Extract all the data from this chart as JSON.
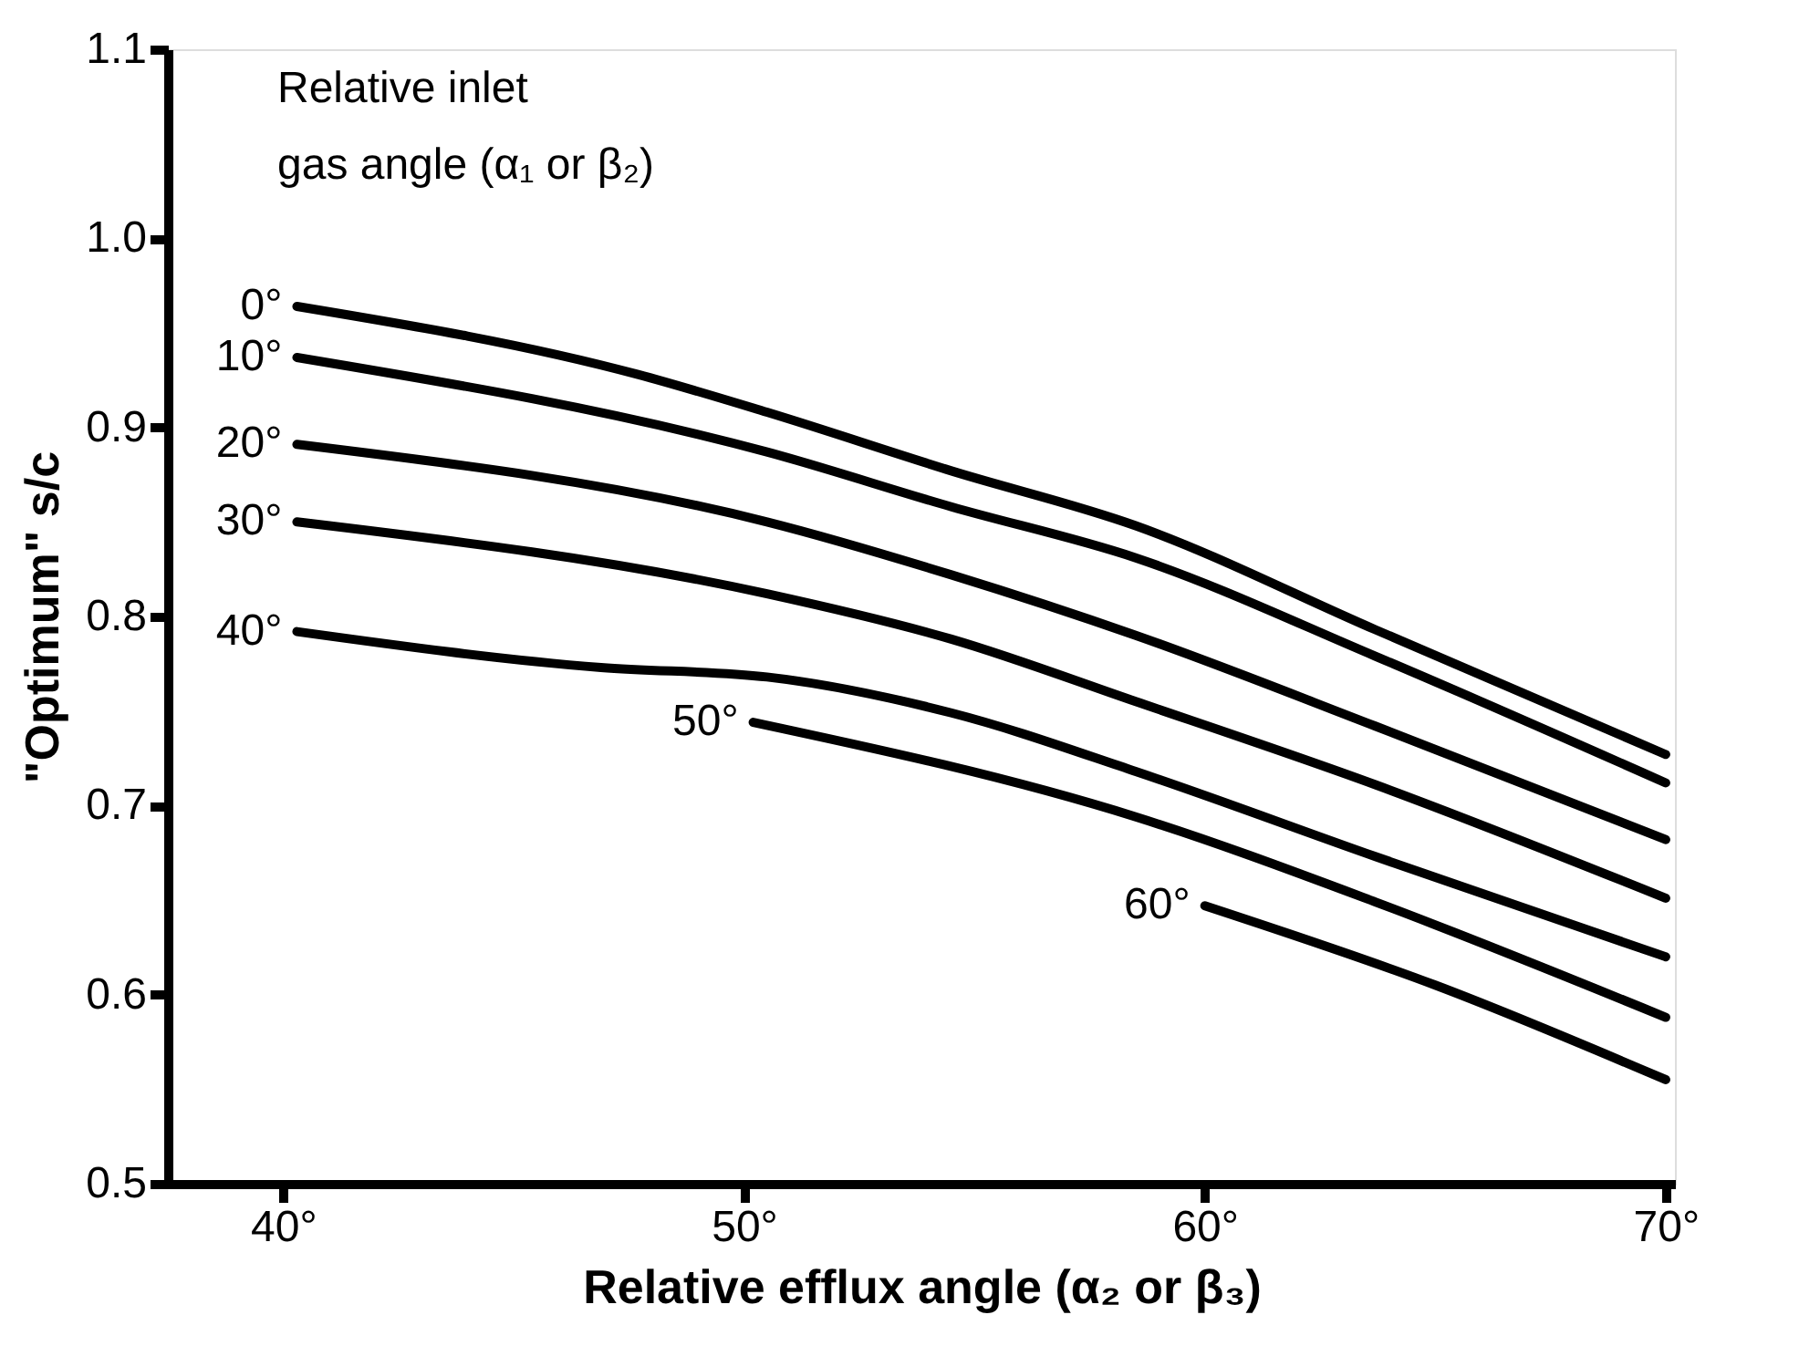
{
  "chart_data": {
    "type": "line",
    "xlabel": "Relative efflux angle (α₂ or β₃)",
    "ylabel": "\"Optimum\" s/c",
    "legend_title": "Relative inlet\ngas angle (α₁ or β₂)",
    "xlim": [
      37.5,
      70.2
    ],
    "ylim": [
      0.5,
      1.1
    ],
    "xticks": [
      {
        "value": 40,
        "label": "40°"
      },
      {
        "value": 50,
        "label": "50°"
      },
      {
        "value": 60,
        "label": "60°"
      },
      {
        "value": 70,
        "label": "70°"
      }
    ],
    "yticks": [
      0.5,
      0.6,
      0.7,
      0.8,
      0.9,
      {
        "value": 1,
        "label": "1.0"
      },
      1.1
    ],
    "line_style": "solid",
    "grid": false,
    "legend": false,
    "series": [
      {
        "name": "0°",
        "color": "#000000",
        "x": [
          40.3,
          47.7,
          50.5,
          54.5,
          58.5,
          63.7,
          70
        ],
        "values": [
          0.964,
          0.928,
          0.908,
          0.877,
          0.848,
          0.793,
          0.727
        ]
      },
      {
        "name": "10°",
        "color": "#000000",
        "x": [
          40.3,
          50.5,
          54.5,
          58.5,
          63.7,
          70
        ],
        "values": [
          0.937,
          0.887,
          0.858,
          0.831,
          0.779,
          0.712
        ]
      },
      {
        "name": "20°",
        "color": "#000000",
        "x": [
          40.3,
          50.5,
          54.5,
          58.5,
          63.7,
          70
        ],
        "values": [
          0.891,
          0.85,
          0.822,
          0.79,
          0.742,
          0.682
        ]
      },
      {
        "name": "30°",
        "color": "#000000",
        "x": [
          40.3,
          50.5,
          54.5,
          58.5,
          63.7,
          70
        ],
        "values": [
          0.85,
          0.812,
          0.788,
          0.755,
          0.711,
          0.651
        ]
      },
      {
        "name": "40°",
        "color": "#000000",
        "x": [
          40.3,
          46.9,
          50.5,
          54.5,
          58.5,
          63.7,
          70
        ],
        "values": [
          0.792,
          0.773,
          0.768,
          0.749,
          0.718,
          0.673,
          0.62
        ]
      },
      {
        "name": "50°",
        "color": "#000000",
        "x": [
          50.2,
          58.5,
          63.7,
          70
        ],
        "values": [
          0.744,
          0.694,
          0.649,
          0.588
        ]
      },
      {
        "name": "60°",
        "color": "#000000",
        "x": [
          60,
          65,
          70
        ],
        "values": [
          0.647,
          0.605,
          0.555
        ]
      }
    ]
  }
}
